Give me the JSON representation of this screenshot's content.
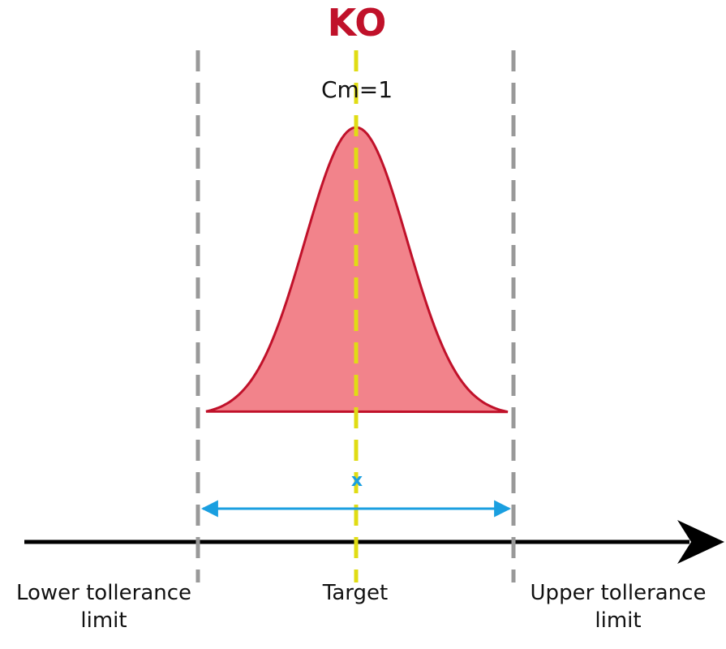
{
  "title": "KO",
  "index_label": "Cm=1",
  "mean_marker": "x",
  "labels": {
    "lower_line1": "Lower tollerance",
    "lower_line2": "limit",
    "target": "Target",
    "upper_line1": "Upper tollerance",
    "upper_line2": "limit"
  },
  "colors": {
    "title": "#c0112a",
    "curve_fill": "#f2838b",
    "curve_stroke": "#c0112a",
    "limit_lines": "#999999",
    "target_line": "#e0dc14",
    "span_arrow": "#1a9fe0",
    "axis": "#000000"
  }
}
